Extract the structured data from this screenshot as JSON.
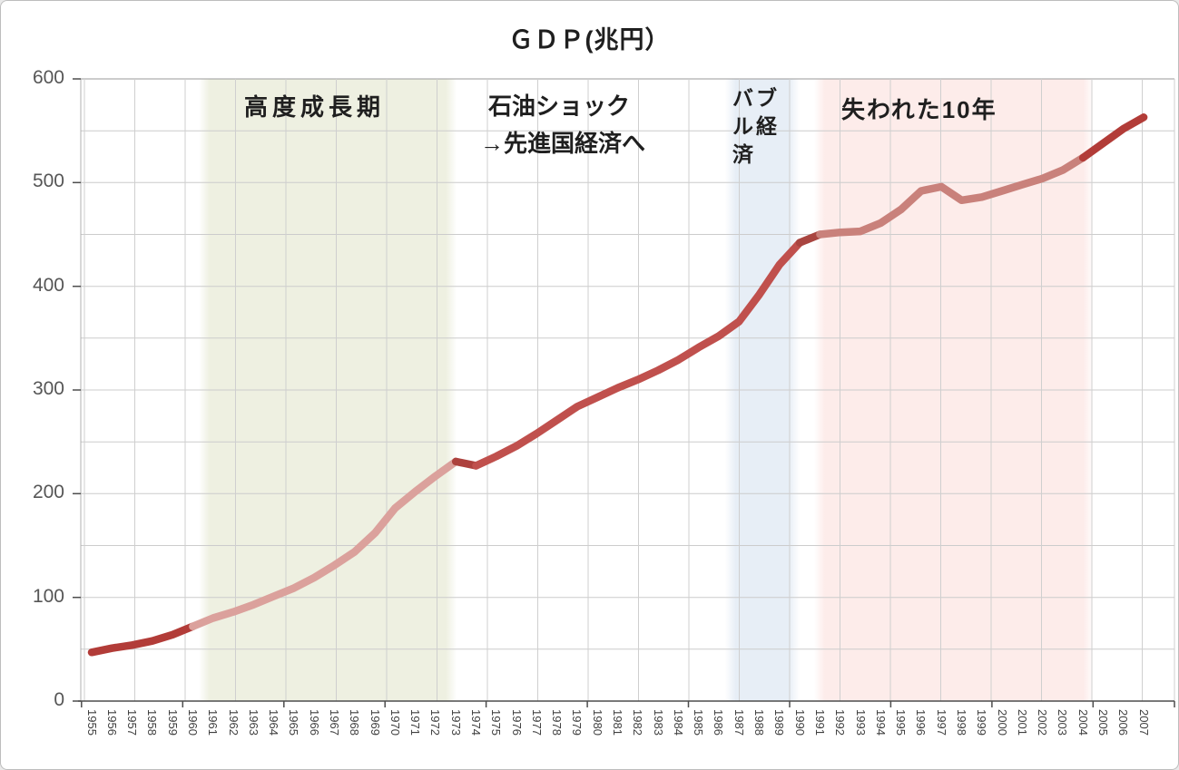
{
  "title": "ＧＤＰ(兆円）",
  "annotations": {
    "high_growth": "高度成長期",
    "oil_shock_line1": "石油ショック",
    "oil_shock_line2": "→先進国経済へ",
    "bubble": "バブル経済",
    "lost_decade": "失われた10年"
  },
  "y_axis": {
    "ticks": [
      600,
      500,
      400,
      300,
      200,
      100,
      0
    ]
  },
  "chart_data": {
    "type": "line",
    "title": "ＧＤＰ(兆円）",
    "xlabel": "",
    "ylabel": "GDP (兆円)",
    "ylim": [
      0,
      600
    ],
    "grid": true,
    "legend": "none",
    "x": [
      1955,
      1956,
      1957,
      1958,
      1959,
      1960,
      1961,
      1962,
      1963,
      1964,
      1965,
      1966,
      1967,
      1968,
      1969,
      1970,
      1971,
      1972,
      1973,
      1974,
      1975,
      1976,
      1977,
      1978,
      1979,
      1980,
      1981,
      1982,
      1983,
      1984,
      1985,
      1986,
      1987,
      1988,
      1989,
      1990,
      1991,
      1992,
      1993,
      1994,
      1995,
      1996,
      1997,
      1998,
      1999,
      2000,
      2001,
      2002,
      2003,
      2004,
      2005,
      2006,
      2007
    ],
    "series": [
      {
        "name": "GDP",
        "values": [
          47,
          51,
          54,
          58,
          64,
          72,
          80,
          86,
          93,
          101,
          109,
          119,
          131,
          144,
          162,
          186,
          202,
          217,
          231,
          227,
          236,
          246,
          258,
          271,
          284,
          293,
          302,
          310,
          319,
          329,
          341,
          352,
          366,
          392,
          421,
          442,
          450,
          452,
          453,
          461,
          474,
          492,
          496,
          483,
          486,
          492,
          498,
          504,
          512,
          524,
          538,
          552,
          563
        ]
      }
    ],
    "line_segments": [
      {
        "from": 1955,
        "to": 1960,
        "color": "#b23c38"
      },
      {
        "from": 1960,
        "to": 1973,
        "color": "#dba19c"
      },
      {
        "from": 1973,
        "to": 1974,
        "color": "#ad413d"
      },
      {
        "from": 1974,
        "to": 1990,
        "color": "#c0504d"
      },
      {
        "from": 1990,
        "to": 1991,
        "color": "#a94540"
      },
      {
        "from": 1991,
        "to": 2004,
        "color": "#c9817b"
      },
      {
        "from": 2004,
        "to": 2007,
        "color": "#b23c38"
      }
    ],
    "bands": [
      {
        "label": "高度成長期",
        "from": 1960.3,
        "to": 1973.05,
        "color": "#eef0e1"
      },
      {
        "label": "バブル経済",
        "from": 1986.3,
        "to": 1990.0,
        "color": "#e7eef6"
      },
      {
        "label": "失われた10年",
        "from": 1990.7,
        "to": 2004.55,
        "color": "#fdecea"
      }
    ],
    "colors": {
      "grid": "#cccccc",
      "grid_top": "#9a9a9a",
      "axis": "#4d4d4d",
      "dark_red": "#b23c38",
      "light_pink": "#dba19c",
      "brick_red": "#c0504d",
      "mid_pink": "#c9817b"
    }
  }
}
